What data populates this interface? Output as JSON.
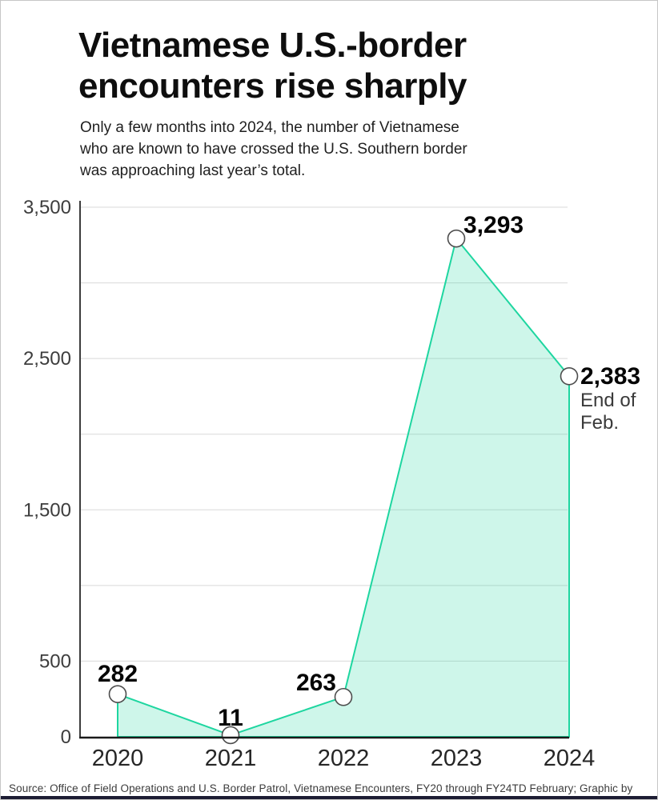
{
  "header": {
    "title": "Vietnamese U.S.-border encounters rise sharply",
    "subtitle": "Only a few months into 2024, the number of Vietnamese who are known to have crossed the U.S. Southern border was approaching last year’s total."
  },
  "chart_data": {
    "type": "area",
    "x": [
      "2020",
      "2021",
      "2022",
      "2023",
      "2024"
    ],
    "values": [
      282,
      11,
      263,
      3293,
      2383
    ],
    "point_labels": [
      "282",
      "11",
      "263",
      "3,293",
      "2,383"
    ],
    "annotation_lines": [
      "End of",
      "Feb."
    ],
    "ylim": [
      0,
      3500
    ],
    "gridline_step": 500,
    "grid": true,
    "legend": false,
    "ytick_values": [
      0,
      500,
      1500,
      2500,
      3500
    ],
    "ytick_labels": [
      "0",
      "500",
      "1,500",
      "2,500",
      "3,500"
    ],
    "colors": {
      "line": "#1ed6a0",
      "fill": "rgba(30,214,160,0.22)",
      "grid": "#d9d9d9",
      "y_axis": "#3c3c3c",
      "x_axis": "#1a1a1a",
      "marker_stroke": "#4d4d4d",
      "marker_fill": "#ffffff",
      "data_label": "#050505",
      "tick_label": "#3d3d3d",
      "x_label": "#262626",
      "annotation": "#3a3a3a"
    }
  },
  "footer": {
    "source": "Source: Office of Field Operations and U.S. Border Patrol, Vietnamese Encounters, FY20 through FY24TD February; Graphic by Amanda Weisbrod / RFA",
    "accent_bar_color": "#1c1c33"
  }
}
